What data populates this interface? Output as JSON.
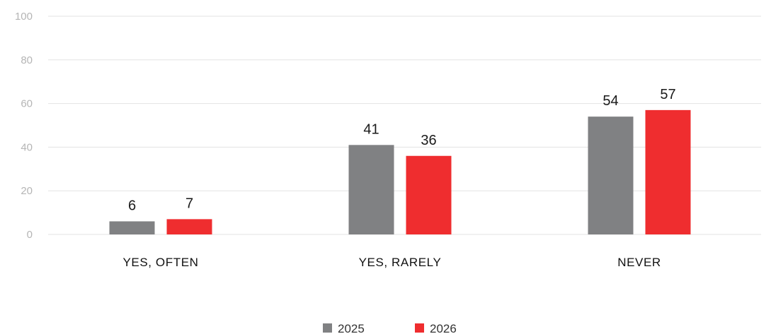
{
  "chart_data": {
    "type": "bar",
    "categories": [
      "YES, OFTEN",
      "YES, RARELY",
      "NEVER"
    ],
    "series": [
      {
        "name": "2025",
        "color": "#808183",
        "values": [
          6,
          41,
          54
        ]
      },
      {
        "name": "2026",
        "color": "#ef2d2f",
        "values": [
          7,
          36,
          57
        ]
      }
    ],
    "ylim": [
      0,
      100
    ],
    "yticks": [
      0,
      20,
      40,
      60,
      80,
      100
    ],
    "grid": true,
    "legend_position": "bottom-center",
    "data_labels": true
  }
}
